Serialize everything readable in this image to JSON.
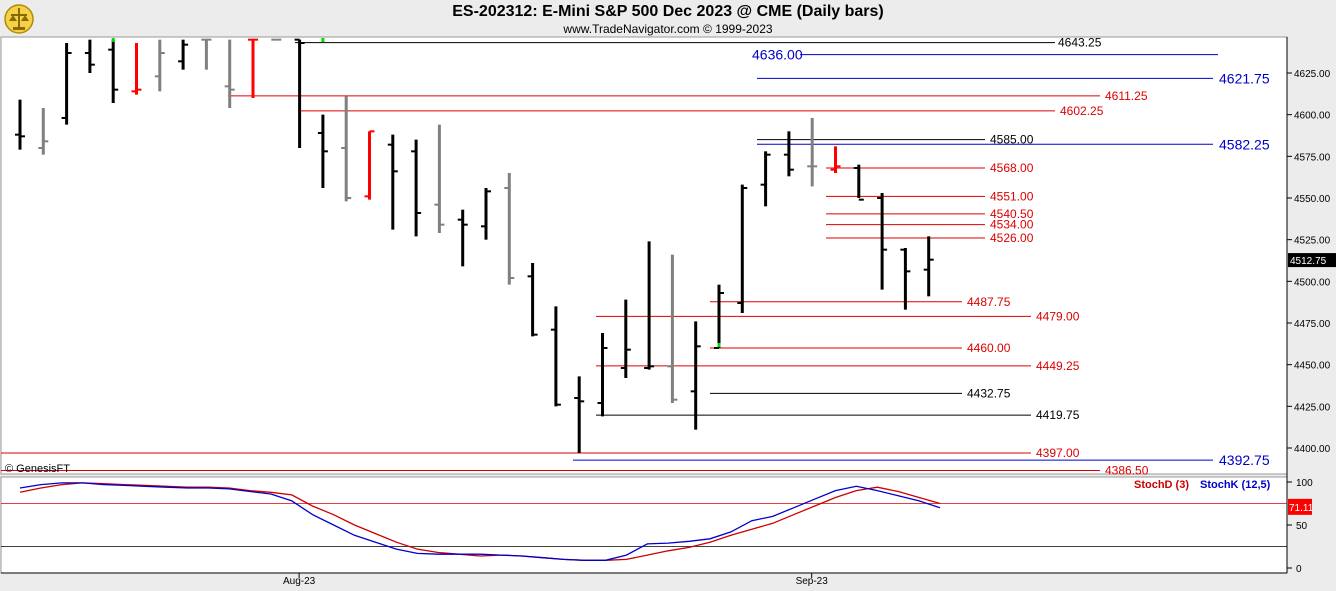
{
  "header": {
    "title": "ES-202312:  E-Mini S&P 500 Dec 2023 @ CME  (Daily bars)",
    "subtitle": "www.TradeNavigator.com © 1999-2023"
  },
  "copyright": "© GenesisFT",
  "colors": {
    "up": "#000000",
    "neutral": "#808080",
    "down_red": "#ff0000",
    "signal_green": "#00dd00",
    "stochD": "#cc0000",
    "stochK": "#0000cc",
    "level_red": "#dd0000",
    "level_blue": "#0000cc",
    "level_black": "#000000"
  },
  "chart_data": [
    {
      "type": "ohlc",
      "title": "ES-202312:  E-Mini S&P 500 Dec 2023 @ CME  (Daily bars)",
      "ylim": [
        4380,
        4640
      ],
      "yticks": [
        4400,
        4425,
        4450,
        4475,
        4500,
        4525,
        4550,
        4575,
        4600,
        4625
      ],
      "ytick_labels": [
        "4400.00",
        "4425.00",
        "4450.00",
        "4475.00",
        "4500.00",
        "4525.00",
        "4550.00",
        "4575.00",
        "4600.00",
        "4625.00"
      ],
      "x_labels": [
        {
          "label": "Aug-23",
          "index": 12
        },
        {
          "label": "Sep-23",
          "index": 34
        }
      ],
      "last_price": "4512.75",
      "bars": [
        {
          "o": 4588,
          "h": 4609,
          "l": 4579,
          "c": 4587,
          "color": "black"
        },
        {
          "o": 4580,
          "h": 4604,
          "l": 4576,
          "c": 4584,
          "color": "gray"
        },
        {
          "o": 4598,
          "h": 4643,
          "l": 4594,
          "c": 4637,
          "color": "black"
        },
        {
          "o": 4637,
          "h": 4645,
          "l": 4625,
          "c": 4630,
          "color": "black"
        },
        {
          "o": 4639,
          "h": 4645,
          "l": 4607,
          "c": 4615,
          "color": "black"
        },
        {
          "o": 4614,
          "h": 4643,
          "l": 4612,
          "c": 4615,
          "color": "red"
        },
        {
          "o": 4623,
          "h": 4645,
          "l": 4614,
          "c": 4637,
          "color": "gray"
        },
        {
          "o": 4632,
          "h": 4645,
          "l": 4627,
          "c": 4642,
          "color": "black"
        },
        {
          "o": 4645,
          "h": 4645,
          "l": 4627,
          "c": 4645,
          "color": "gray"
        },
        {
          "o": 4617,
          "h": 4645,
          "l": 4604,
          "c": 4615,
          "color": "gray"
        },
        {
          "o": 4645,
          "h": 4645,
          "l": 4610,
          "c": 4645,
          "color": "red"
        },
        {
          "o": 4645,
          "h": 4645,
          "l": 4645,
          "c": 4645,
          "color": "gray"
        },
        {
          "o": 4645,
          "h": 4645,
          "l": 4580,
          "c": 4643,
          "color": "black"
        },
        {
          "o": 4589,
          "h": 4600,
          "l": 4556,
          "c": 4578,
          "color": "black"
        },
        {
          "o": 4580,
          "h": 4611,
          "l": 4548,
          "c": 4550,
          "color": "gray"
        },
        {
          "o": 4551,
          "h": 4590,
          "l": 4549,
          "c": 4590,
          "color": "red"
        },
        {
          "o": 4582,
          "h": 4588,
          "l": 4531,
          "c": 4566,
          "color": "black"
        },
        {
          "o": 4578,
          "h": 4585,
          "l": 4527,
          "c": 4541,
          "color": "black"
        },
        {
          "o": 4546,
          "h": 4594,
          "l": 4529,
          "c": 4534,
          "color": "gray"
        },
        {
          "o": 4537,
          "h": 4543,
          "l": 4509,
          "c": 4534,
          "color": "black"
        },
        {
          "o": 4533,
          "h": 4556,
          "l": 4525,
          "c": 4554,
          "color": "black"
        },
        {
          "o": 4556,
          "h": 4565,
          "l": 4498,
          "c": 4502,
          "color": "gray"
        },
        {
          "o": 4503,
          "h": 4511,
          "l": 4467,
          "c": 4468,
          "color": "black"
        },
        {
          "o": 4471,
          "h": 4485,
          "l": 4425,
          "c": 4426,
          "color": "black"
        },
        {
          "o": 4430,
          "h": 4443,
          "l": 4397,
          "c": 4428,
          "color": "black"
        },
        {
          "o": 4427,
          "h": 4469,
          "l": 4419,
          "c": 4460,
          "color": "black"
        },
        {
          "o": 4448,
          "h": 4489,
          "l": 4442,
          "c": 4459,
          "color": "black"
        },
        {
          "o": 4448,
          "h": 4524,
          "l": 4447,
          "c": 4449,
          "color": "black"
        },
        {
          "o": 4449,
          "h": 4516,
          "l": 4427,
          "c": 4429,
          "color": "gray"
        },
        {
          "o": 4434,
          "h": 4476,
          "l": 4411,
          "c": 4461,
          "color": "black"
        },
        {
          "o": 4460,
          "h": 4498,
          "l": 4460,
          "c": 4493,
          "color": "black"
        },
        {
          "o": 4487,
          "h": 4558,
          "l": 4481,
          "c": 4556,
          "color": "black"
        },
        {
          "o": 4558,
          "h": 4578,
          "l": 4545,
          "c": 4576,
          "color": "black"
        },
        {
          "o": 4576,
          "h": 4590,
          "l": 4563,
          "c": 4567,
          "color": "black"
        },
        {
          "o": 4569,
          "h": 4598,
          "l": 4557,
          "c": 4569,
          "color": "gray"
        },
        {
          "o": 4567,
          "h": 4581,
          "l": 4565,
          "c": 4569,
          "color": "red"
        },
        {
          "o": 4568,
          "h": 4570,
          "l": 4550,
          "c": 4549,
          "color": "black"
        },
        {
          "o": 4550,
          "h": 4553,
          "l": 4495,
          "c": 4519,
          "color": "black"
        },
        {
          "o": 4519,
          "h": 4520,
          "l": 4483,
          "c": 4506,
          "color": "black"
        },
        {
          "o": 4507,
          "h": 4527,
          "l": 4491,
          "c": 4513,
          "color": "black"
        }
      ],
      "levels": [
        {
          "price": 4643.25,
          "label": "4643.25",
          "color": "black",
          "size": "small"
        },
        {
          "price": 4636.0,
          "label": "4636.00",
          "color": "blue",
          "size": "large",
          "label_side": "left"
        },
        {
          "price": 4621.75,
          "label": "4621.75",
          "color": "blue",
          "size": "large"
        },
        {
          "price": 4611.25,
          "label": "4611.25",
          "color": "red",
          "size": "small"
        },
        {
          "price": 4602.25,
          "label": "4602.25",
          "color": "red",
          "size": "small"
        },
        {
          "price": 4585.0,
          "label": "4585.00",
          "color": "black",
          "size": "small"
        },
        {
          "price": 4582.25,
          "label": "4582.25",
          "color": "blue",
          "size": "large"
        },
        {
          "price": 4568.0,
          "label": "4568.00",
          "color": "red",
          "size": "small"
        },
        {
          "price": 4551.0,
          "label": "4551.00",
          "color": "red",
          "size": "small"
        },
        {
          "price": 4540.5,
          "label": "4540.50",
          "color": "red",
          "size": "small"
        },
        {
          "price": 4534.0,
          "label": "4534.00",
          "color": "red",
          "size": "small"
        },
        {
          "price": 4526.0,
          "label": "4526.00",
          "color": "red",
          "size": "small"
        },
        {
          "price": 4487.75,
          "label": "4487.75",
          "color": "red",
          "size": "small"
        },
        {
          "price": 4479.0,
          "label": "4479.00",
          "color": "red",
          "size": "small"
        },
        {
          "price": 4460.0,
          "label": "4460.00",
          "color": "red",
          "size": "small"
        },
        {
          "price": 4449.25,
          "label": "4449.25",
          "color": "red",
          "size": "small"
        },
        {
          "price": 4432.75,
          "label": "4432.75",
          "color": "black",
          "size": "small"
        },
        {
          "price": 4419.75,
          "label": "4419.75",
          "color": "black",
          "size": "small"
        },
        {
          "price": 4397.0,
          "label": "4397.00",
          "color": "red",
          "size": "small"
        },
        {
          "price": 4392.75,
          "label": "4392.75",
          "color": "blue",
          "size": "large"
        },
        {
          "price": 4386.5,
          "label": "4386.50",
          "color": "red",
          "size": "small"
        }
      ]
    },
    {
      "type": "line",
      "title": "",
      "ylim": [
        0,
        100
      ],
      "yticks": [
        0,
        50,
        100
      ],
      "ytick_labels": [
        "0",
        "50",
        "100"
      ],
      "reference_lines": [
        25,
        75
      ],
      "last_value": "71.11",
      "series": [
        {
          "name": "StochD (3)",
          "color": "red",
          "values": [
            88,
            93,
            97,
            99,
            98,
            97,
            96,
            95,
            94,
            94,
            93,
            90,
            88,
            85,
            72,
            62,
            50,
            40,
            30,
            22,
            18,
            16,
            14,
            15,
            14,
            12,
            10,
            9,
            9,
            10,
            15,
            20,
            24,
            30,
            38,
            45,
            52,
            62,
            72,
            82,
            90,
            94,
            89,
            82,
            75
          ]
        },
        {
          "name": "StochK (12,5)",
          "color": "blue",
          "values": [
            93,
            97,
            99,
            99,
            97,
            96,
            95,
            94,
            93,
            93,
            92,
            89,
            86,
            78,
            62,
            50,
            38,
            30,
            22,
            17,
            16,
            16,
            16,
            15,
            14,
            12,
            10,
            9,
            9,
            15,
            28,
            29,
            31,
            34,
            42,
            55,
            60,
            70,
            80,
            90,
            95,
            90,
            84,
            78,
            70
          ]
        }
      ]
    }
  ]
}
